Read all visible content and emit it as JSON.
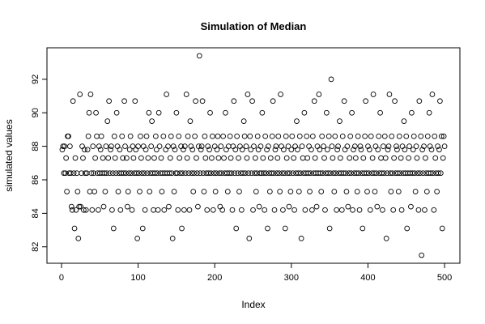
{
  "chart_data": {
    "type": "scatter",
    "title": "Simulation of Median",
    "xlabel": "Index",
    "ylabel": "simulated values",
    "xlim": [
      -19,
      520
    ],
    "ylim": [
      81.02,
      93.88
    ],
    "xticks": [
      0,
      100,
      200,
      300,
      400,
      500
    ],
    "yticks": [
      82,
      84,
      86,
      88,
      90,
      92
    ],
    "grid": false,
    "point_color": "#000000",
    "x": [
      1,
      2,
      3,
      4,
      5,
      6,
      7,
      8,
      9,
      10,
      11,
      12,
      13,
      14,
      15,
      16,
      17,
      18,
      19,
      20,
      21,
      22,
      23,
      24,
      25,
      26,
      27,
      28,
      29,
      30,
      31,
      32,
      33,
      34,
      35,
      36,
      37,
      38,
      39,
      40,
      41,
      42,
      43,
      44,
      45,
      46,
      47,
      48,
      49,
      50,
      51,
      52,
      53,
      54,
      55,
      56,
      57,
      58,
      59,
      60,
      61,
      62,
      63,
      64,
      65,
      66,
      67,
      68,
      69,
      70,
      71,
      72,
      73,
      74,
      75,
      76,
      77,
      78,
      79,
      80,
      81,
      82,
      83,
      84,
      85,
      86,
      87,
      88,
      89,
      90,
      91,
      92,
      93,
      94,
      95,
      96,
      97,
      98,
      99,
      100,
      101,
      102,
      103,
      104,
      105,
      106,
      107,
      108,
      109,
      110,
      111,
      112,
      113,
      114,
      115,
      116,
      117,
      118,
      119,
      120,
      121,
      122,
      123,
      124,
      125,
      126,
      127,
      128,
      129,
      130,
      131,
      132,
      133,
      134,
      135,
      136,
      137,
      138,
      139,
      140,
      141,
      142,
      143,
      144,
      145,
      146,
      147,
      148,
      149,
      150,
      151,
      152,
      153,
      154,
      155,
      156,
      157,
      158,
      159,
      160,
      161,
      162,
      163,
      164,
      165,
      166,
      167,
      168,
      169,
      170,
      171,
      172,
      173,
      174,
      175,
      176,
      177,
      178,
      179,
      180,
      181,
      182,
      183,
      184,
      185,
      186,
      187,
      188,
      189,
      190,
      191,
      192,
      193,
      194,
      195,
      196,
      197,
      198,
      199,
      200,
      201,
      202,
      203,
      204,
      205,
      206,
      207,
      208,
      209,
      210,
      211,
      212,
      213,
      214,
      215,
      216,
      217,
      218,
      219,
      220,
      221,
      222,
      223,
      224,
      225,
      226,
      227,
      228,
      229,
      230,
      231,
      232,
      233,
      234,
      235,
      236,
      237,
      238,
      239,
      240,
      241,
      242,
      243,
      244,
      245,
      246,
      247,
      248,
      249,
      250,
      251,
      252,
      253,
      254,
      255,
      256,
      257,
      258,
      259,
      260,
      261,
      262,
      263,
      264,
      265,
      266,
      267,
      268,
      269,
      270,
      271,
      272,
      273,
      274,
      275,
      276,
      277,
      278,
      279,
      280,
      281,
      282,
      283,
      284,
      285,
      286,
      287,
      288,
      289,
      290,
      291,
      292,
      293,
      294,
      295,
      296,
      297,
      298,
      299,
      300,
      301,
      302,
      303,
      304,
      305,
      306,
      307,
      308,
      309,
      310,
      311,
      312,
      313,
      314,
      315,
      316,
      317,
      318,
      319,
      320,
      321,
      322,
      323,
      324,
      325,
      326,
      327,
      328,
      329,
      330,
      331,
      332,
      333,
      334,
      335,
      336,
      337,
      338,
      339,
      340,
      341,
      342,
      343,
      344,
      345,
      346,
      347,
      348,
      349,
      350,
      351,
      352,
      353,
      354,
      355,
      356,
      357,
      358,
      359,
      360,
      361,
      362,
      363,
      364,
      365,
      366,
      367,
      368,
      369,
      370,
      371,
      372,
      373,
      374,
      375,
      376,
      377,
      378,
      379,
      380,
      381,
      382,
      383,
      384,
      385,
      386,
      387,
      388,
      389,
      390,
      391,
      392,
      393,
      394,
      395,
      396,
      397,
      398,
      399,
      400,
      401,
      402,
      403,
      404,
      405,
      406,
      407,
      408,
      409,
      410,
      411,
      412,
      413,
      414,
      415,
      416,
      417,
      418,
      419,
      420,
      421,
      422,
      423,
      424,
      425,
      426,
      427,
      428,
      429,
      430,
      431,
      432,
      433,
      434,
      435,
      436,
      437,
      438,
      439,
      440,
      441,
      442,
      443,
      444,
      445,
      446,
      447,
      448,
      449,
      450,
      451,
      452,
      453,
      454,
      455,
      456,
      457,
      458,
      459,
      460,
      461,
      462,
      463,
      464,
      465,
      466,
      467,
      468,
      469,
      470,
      471,
      472,
      473,
      474,
      475,
      476,
      477,
      478,
      479,
      480,
      481,
      482,
      483,
      484,
      485,
      486,
      487,
      488,
      489,
      490,
      491,
      492,
      493,
      494,
      495,
      496,
      497,
      498,
      499,
      500
    ],
    "y": [
      87.8,
      88.0,
      86.4,
      88.0,
      86.4,
      87.3,
      85.3,
      88.6,
      88.6,
      86.4,
      88.0,
      86.4,
      84.4,
      84.2,
      90.7,
      86.4,
      83.1,
      87.3,
      84.2,
      86.4,
      85.3,
      82.5,
      84.4,
      91.1,
      84.4,
      86.4,
      88.0,
      87.3,
      84.2,
      87.8,
      86.4,
      84.2,
      86.4,
      87.8,
      88.6,
      90.0,
      85.3,
      91.1,
      86.4,
      84.2,
      88.0,
      86.4,
      85.3,
      87.3,
      90.0,
      88.6,
      86.4,
      84.2,
      88.0,
      86.4,
      87.8,
      88.6,
      86.4,
      87.3,
      84.4,
      86.4,
      85.3,
      88.0,
      86.4,
      89.5,
      87.3,
      90.7,
      86.4,
      87.8,
      88.0,
      84.2,
      86.4,
      83.1,
      88.6,
      87.3,
      86.4,
      90.0,
      88.0,
      85.3,
      86.4,
      87.8,
      84.2,
      86.4,
      88.6,
      87.3,
      86.4,
      90.7,
      88.0,
      86.4,
      87.3,
      84.4,
      85.3,
      86.4,
      87.8,
      88.6,
      86.4,
      84.2,
      88.0,
      87.3,
      86.4,
      90.7,
      87.8,
      86.4,
      82.5,
      88.0,
      86.4,
      85.3,
      88.6,
      87.3,
      86.4,
      83.1,
      88.0,
      86.4,
      84.2,
      87.8,
      88.6,
      86.4,
      87.3,
      90.0,
      85.3,
      86.4,
      88.0,
      89.5,
      86.4,
      84.2,
      87.3,
      86.4,
      88.6,
      87.8,
      86.4,
      84.2,
      90.0,
      88.0,
      86.4,
      87.3,
      85.3,
      86.4,
      88.6,
      84.2,
      86.4,
      87.8,
      91.1,
      86.4,
      88.0,
      84.4,
      86.4,
      87.3,
      88.6,
      86.4,
      82.5,
      88.0,
      85.3,
      87.8,
      86.4,
      90.0,
      86.4,
      84.2,
      88.6,
      87.3,
      86.4,
      88.0,
      83.1,
      86.4,
      87.8,
      84.2,
      88.0,
      86.4,
      91.1,
      87.3,
      88.6,
      86.4,
      84.2,
      89.5,
      88.0,
      86.4,
      87.8,
      85.3,
      86.4,
      88.6,
      90.7,
      87.3,
      86.4,
      84.4,
      88.0,
      93.4,
      86.4,
      87.8,
      88.0,
      90.7,
      86.4,
      85.3,
      88.6,
      87.3,
      86.4,
      84.2,
      88.0,
      86.4,
      87.8,
      90.0,
      86.4,
      87.3,
      88.6,
      84.2,
      86.4,
      88.0,
      85.3,
      86.4,
      87.8,
      88.6,
      87.3,
      86.4,
      84.4,
      88.0,
      86.4,
      84.2,
      88.6,
      87.3,
      86.4,
      90.0,
      87.8,
      86.4,
      85.3,
      88.0,
      86.4,
      88.6,
      87.3,
      86.4,
      84.2,
      88.0,
      90.7,
      86.4,
      87.8,
      83.1,
      88.6,
      86.4,
      87.3,
      85.3,
      88.0,
      86.4,
      84.2,
      87.8,
      86.4,
      89.5,
      88.6,
      86.4,
      88.0,
      87.3,
      91.1,
      86.4,
      82.5,
      88.6,
      87.8,
      86.4,
      90.7,
      84.2,
      88.0,
      86.4,
      87.3,
      85.3,
      86.4,
      88.6,
      87.8,
      84.4,
      86.4,
      88.0,
      86.4,
      90.0,
      87.3,
      86.4,
      84.2,
      88.6,
      86.4,
      87.8,
      83.1,
      88.0,
      86.4,
      85.3,
      87.3,
      86.4,
      88.6,
      90.7,
      86.4,
      84.2,
      87.8,
      88.0,
      86.4,
      87.3,
      88.6,
      86.4,
      85.3,
      91.1,
      88.0,
      86.4,
      84.2,
      87.8,
      86.4,
      83.1,
      88.6,
      87.3,
      86.4,
      88.0,
      84.4,
      86.4,
      85.3,
      87.8,
      88.6,
      86.4,
      87.3,
      84.2,
      88.0,
      86.4,
      89.5,
      87.8,
      86.4,
      85.3,
      88.6,
      86.4,
      82.5,
      88.0,
      87.3,
      86.4,
      90.0,
      84.2,
      86.4,
      88.6,
      87.3,
      86.4,
      88.0,
      85.3,
      86.4,
      87.8,
      84.2,
      88.6,
      86.4,
      90.7,
      87.3,
      86.4,
      84.4,
      88.0,
      86.4,
      91.1,
      87.8,
      86.4,
      85.3,
      88.6,
      86.4,
      88.0,
      87.3,
      84.2,
      86.4,
      90.0,
      87.8,
      86.4,
      88.6,
      83.1,
      86.4,
      92.0,
      88.0,
      87.3,
      86.4,
      85.3,
      88.6,
      86.4,
      84.2,
      87.8,
      88.0,
      86.4,
      89.5,
      87.3,
      86.4,
      84.2,
      88.6,
      86.4,
      90.7,
      87.8,
      86.4,
      85.3,
      88.0,
      84.4,
      86.4,
      87.3,
      88.6,
      86.4,
      90.0,
      84.2,
      87.8,
      86.4,
      88.0,
      87.3,
      86.4,
      85.3,
      88.6,
      86.4,
      84.2,
      88.0,
      87.8,
      86.4,
      83.1,
      87.3,
      86.4,
      88.6,
      90.7,
      86.4,
      85.3,
      88.0,
      86.4,
      87.8,
      84.2,
      88.6,
      86.4,
      87.3,
      91.1,
      86.4,
      85.3,
      88.0,
      86.4,
      84.4,
      87.8,
      88.6,
      86.4,
      90.0,
      87.3,
      86.4,
      84.2,
      88.0,
      86.4,
      88.6,
      87.3,
      82.5,
      86.4,
      87.8,
      88.0,
      91.1,
      86.4,
      85.3,
      88.6,
      86.4,
      84.2,
      87.3,
      90.7,
      86.4,
      88.0,
      87.8,
      86.4,
      85.3,
      88.6,
      86.4,
      87.3,
      84.2,
      88.0,
      86.4,
      89.5,
      87.8,
      86.4,
      88.6,
      83.1,
      86.4,
      87.3,
      88.0,
      86.4,
      84.4,
      90.0,
      86.4,
      87.8,
      88.6,
      86.4,
      85.3,
      88.0,
      87.3,
      86.4,
      84.2,
      90.7,
      86.4,
      88.6,
      81.5,
      87.8,
      86.4,
      88.0,
      84.2,
      87.3,
      86.4,
      85.3,
      88.6,
      86.4,
      90.0,
      88.0,
      86.4,
      87.8,
      91.1,
      86.4,
      84.2,
      88.6,
      87.3,
      86.4,
      85.3,
      88.0,
      86.4,
      87.8,
      90.7,
      86.4,
      88.6,
      83.1,
      87.3,
      88.6,
      88.0
    ]
  }
}
